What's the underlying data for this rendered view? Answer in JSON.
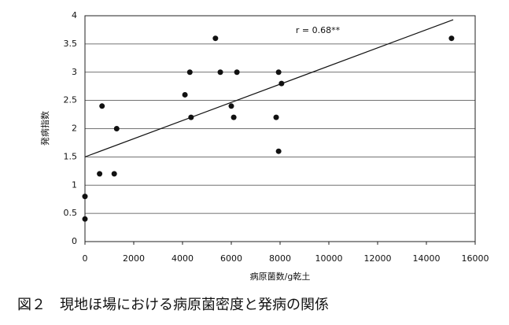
{
  "chart_data": {
    "type": "scatter",
    "caption": "図２　現地ほ場における病原菌密度と発病の関係",
    "xlabel": "病原菌数/g乾土",
    "ylabel": "発病指数",
    "annotation": "r = 0.68**",
    "x": [
      0,
      0,
      600,
      1200,
      700,
      1300,
      4100,
      4300,
      4350,
      5350,
      5550,
      6000,
      6100,
      6230,
      7840,
      7940,
      7940,
      8060,
      15030
    ],
    "values": [
      0.8,
      0.4,
      1.2,
      1.2,
      2.4,
      2.0,
      2.6,
      3.0,
      2.2,
      3.6,
      3.0,
      2.4,
      2.2,
      3.0,
      2.2,
      3.0,
      1.6,
      2.8,
      3.6
    ],
    "color": "#111111",
    "trendline": {
      "x": [
        0,
        15100
      ],
      "y": [
        1.5,
        3.93
      ]
    },
    "xlim": [
      0,
      16000
    ],
    "xticks": [
      0,
      2000,
      4000,
      6000,
      8000,
      10000,
      12000,
      14000,
      16000
    ],
    "ylim": [
      0,
      4
    ],
    "yticks": [
      0,
      0.5,
      1,
      1.5,
      2,
      2.5,
      3,
      3.5,
      4
    ],
    "grid": true
  }
}
